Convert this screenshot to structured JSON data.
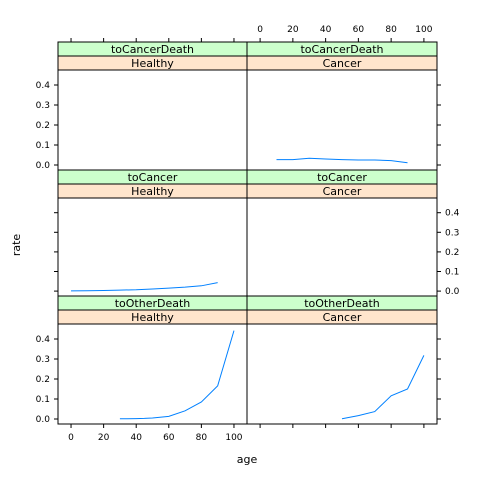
{
  "chart_data": {
    "type": "line",
    "xlabel": "age",
    "ylabel": "rate",
    "xlim": [
      -8,
      108
    ],
    "ylim": [
      -0.025,
      0.475
    ],
    "x_ticks": [
      0,
      20,
      40,
      60,
      80,
      100
    ],
    "y_ticks": [
      0.0,
      0.1,
      0.2,
      0.3,
      0.4
    ],
    "x_tick_labels": [
      "0",
      "20",
      "40",
      "60",
      "80",
      "100"
    ],
    "y_tick_labels": [
      "0.0",
      "0.1",
      "0.2",
      "0.3",
      "0.4"
    ],
    "line_color": "#0080ff",
    "strip_outer_color": "#ccffcc",
    "strip_inner_color": "#ffe5cc",
    "panels": [
      {
        "row": 0,
        "col": 0,
        "strip_top": "toCancerDeath",
        "strip_bottom": "Healthy",
        "x": [],
        "y": []
      },
      {
        "row": 0,
        "col": 1,
        "strip_top": "toCancerDeath",
        "strip_bottom": "Cancer",
        "x": [
          10,
          20,
          30,
          40,
          50,
          60,
          70,
          80,
          90
        ],
        "y": [
          0.027,
          0.027,
          0.034,
          0.03,
          0.027,
          0.025,
          0.025,
          0.022,
          0.011
        ]
      },
      {
        "row": 1,
        "col": 0,
        "strip_top": "toCancer",
        "strip_bottom": "Healthy",
        "x": [
          0,
          10,
          20,
          30,
          40,
          50,
          60,
          70,
          80,
          90
        ],
        "y": [
          0.001,
          0.002,
          0.003,
          0.005,
          0.007,
          0.011,
          0.015,
          0.02,
          0.027,
          0.043
        ]
      },
      {
        "row": 1,
        "col": 1,
        "strip_top": "toCancer",
        "strip_bottom": "Cancer",
        "x": [],
        "y": []
      },
      {
        "row": 2,
        "col": 0,
        "strip_top": "toOtherDeath",
        "strip_bottom": "Healthy",
        "x": [
          30,
          40,
          45,
          50,
          60,
          70,
          80,
          90,
          100
        ],
        "y": [
          0.001,
          0.002,
          0.003,
          0.005,
          0.013,
          0.041,
          0.085,
          0.166,
          0.442
        ]
      },
      {
        "row": 2,
        "col": 1,
        "strip_top": "toOtherDeath",
        "strip_bottom": "Cancer",
        "x": [
          50,
          60,
          70,
          80,
          90,
          100
        ],
        "y": [
          0.001,
          0.017,
          0.037,
          0.116,
          0.15,
          0.318
        ]
      }
    ]
  }
}
